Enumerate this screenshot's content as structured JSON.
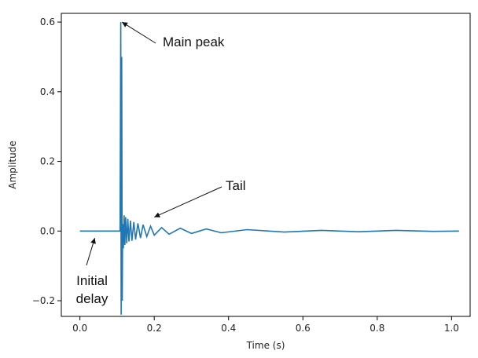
{
  "chart_data": {
    "type": "line",
    "title": "",
    "xlabel": "Time (s)",
    "ylabel": "Amplitude",
    "xlim": [
      -0.05,
      1.05
    ],
    "ylim": [
      -0.245,
      0.625
    ],
    "grid": false,
    "line_color": "#1f77b4",
    "xticks": [
      0.0,
      0.2,
      0.4,
      0.6,
      0.8,
      1.0
    ],
    "xtick_labels": [
      "0.0",
      "0.2",
      "0.4",
      "0.6",
      "0.8",
      "1.0"
    ],
    "yticks": [
      -0.2,
      0.0,
      0.2,
      0.4,
      0.6
    ],
    "ytick_labels": [
      "−0.2",
      "0.0",
      "0.2",
      "0.4",
      "0.6"
    ],
    "series": [
      {
        "x": [
          0.0,
          0.108,
          0.11,
          0.111,
          0.1125,
          0.114,
          0.115,
          0.117,
          0.119,
          0.121,
          0.123,
          0.126,
          0.129,
          0.132,
          0.136,
          0.14,
          0.145,
          0.15,
          0.156,
          0.163,
          0.17,
          0.18,
          0.19,
          0.2,
          0.22,
          0.24,
          0.27,
          0.3,
          0.34,
          0.38,
          0.45,
          0.55,
          0.65,
          0.75,
          0.85,
          0.95,
          1.02
        ],
        "y": [
          0.0,
          0.0,
          0.6,
          -0.24,
          0.5,
          -0.2,
          0.02,
          -0.05,
          0.045,
          -0.04,
          0.04,
          -0.035,
          0.035,
          -0.03,
          0.03,
          -0.028,
          0.026,
          -0.024,
          0.022,
          -0.02,
          0.018,
          -0.016,
          0.014,
          -0.012,
          0.01,
          -0.009,
          0.008,
          -0.007,
          0.006,
          -0.005,
          0.004,
          -0.003,
          0.002,
          -0.002,
          0.002,
          -0.001,
          0.0
        ]
      }
    ],
    "annotations": [
      {
        "text": "Main peak",
        "x": 0.113,
        "y": 0.6
      },
      {
        "text": "Tail",
        "x": 0.2,
        "y": 0.04
      },
      {
        "text": "Initial\ndelay",
        "x": 0.04,
        "y": -0.02
      }
    ]
  }
}
